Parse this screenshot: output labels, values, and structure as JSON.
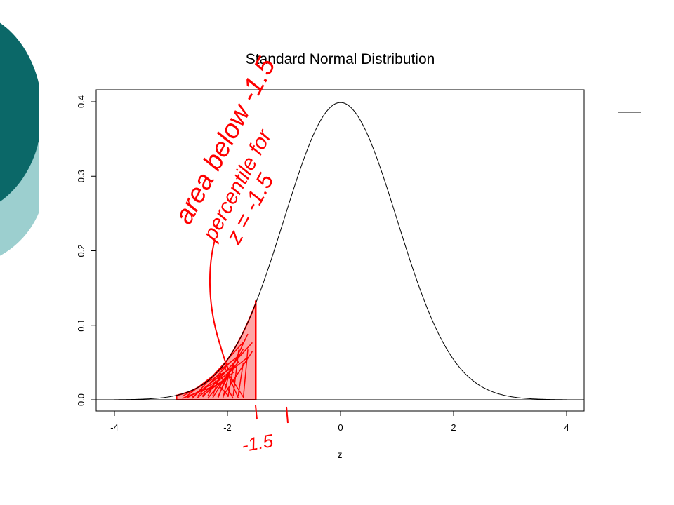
{
  "slide": {
    "accent_colors": {
      "teal_dark": "#0b6868",
      "teal_light": "#9ccfcf"
    }
  },
  "chart_data": {
    "type": "line",
    "title": "Standard Normal Distribution",
    "xlabel": "z",
    "ylabel": "",
    "xlim": [
      -4,
      4
    ],
    "ylim": [
      0,
      0.4
    ],
    "x_ticks": [
      "-4",
      "-2",
      "0",
      "2",
      "4"
    ],
    "y_ticks": [
      "0.0",
      "0.1",
      "0.2",
      "0.3",
      "0.4"
    ],
    "series": [
      {
        "x": [
          -4,
          -3.5,
          -3,
          -2.5,
          -2,
          -1.5,
          -1,
          -0.5,
          0,
          0.5,
          1,
          1.5,
          2,
          2.5,
          3,
          3.5,
          4
        ],
        "values": [
          0.0001,
          0.0009,
          0.0044,
          0.0175,
          0.054,
          0.1295,
          0.242,
          0.3521,
          0.3989,
          0.3521,
          0.242,
          0.1295,
          0.054,
          0.0175,
          0.0044,
          0.0009,
          0.0001
        ]
      }
    ],
    "shaded_region": {
      "from": -4,
      "to": -1.5,
      "color": "#ff0000"
    },
    "grid": false,
    "annotations": {
      "line1": "area below -1.5",
      "line2": "percentile for",
      "line3": "z = -1.5",
      "marker_label": "-1.5",
      "color": "#ff0000"
    }
  }
}
